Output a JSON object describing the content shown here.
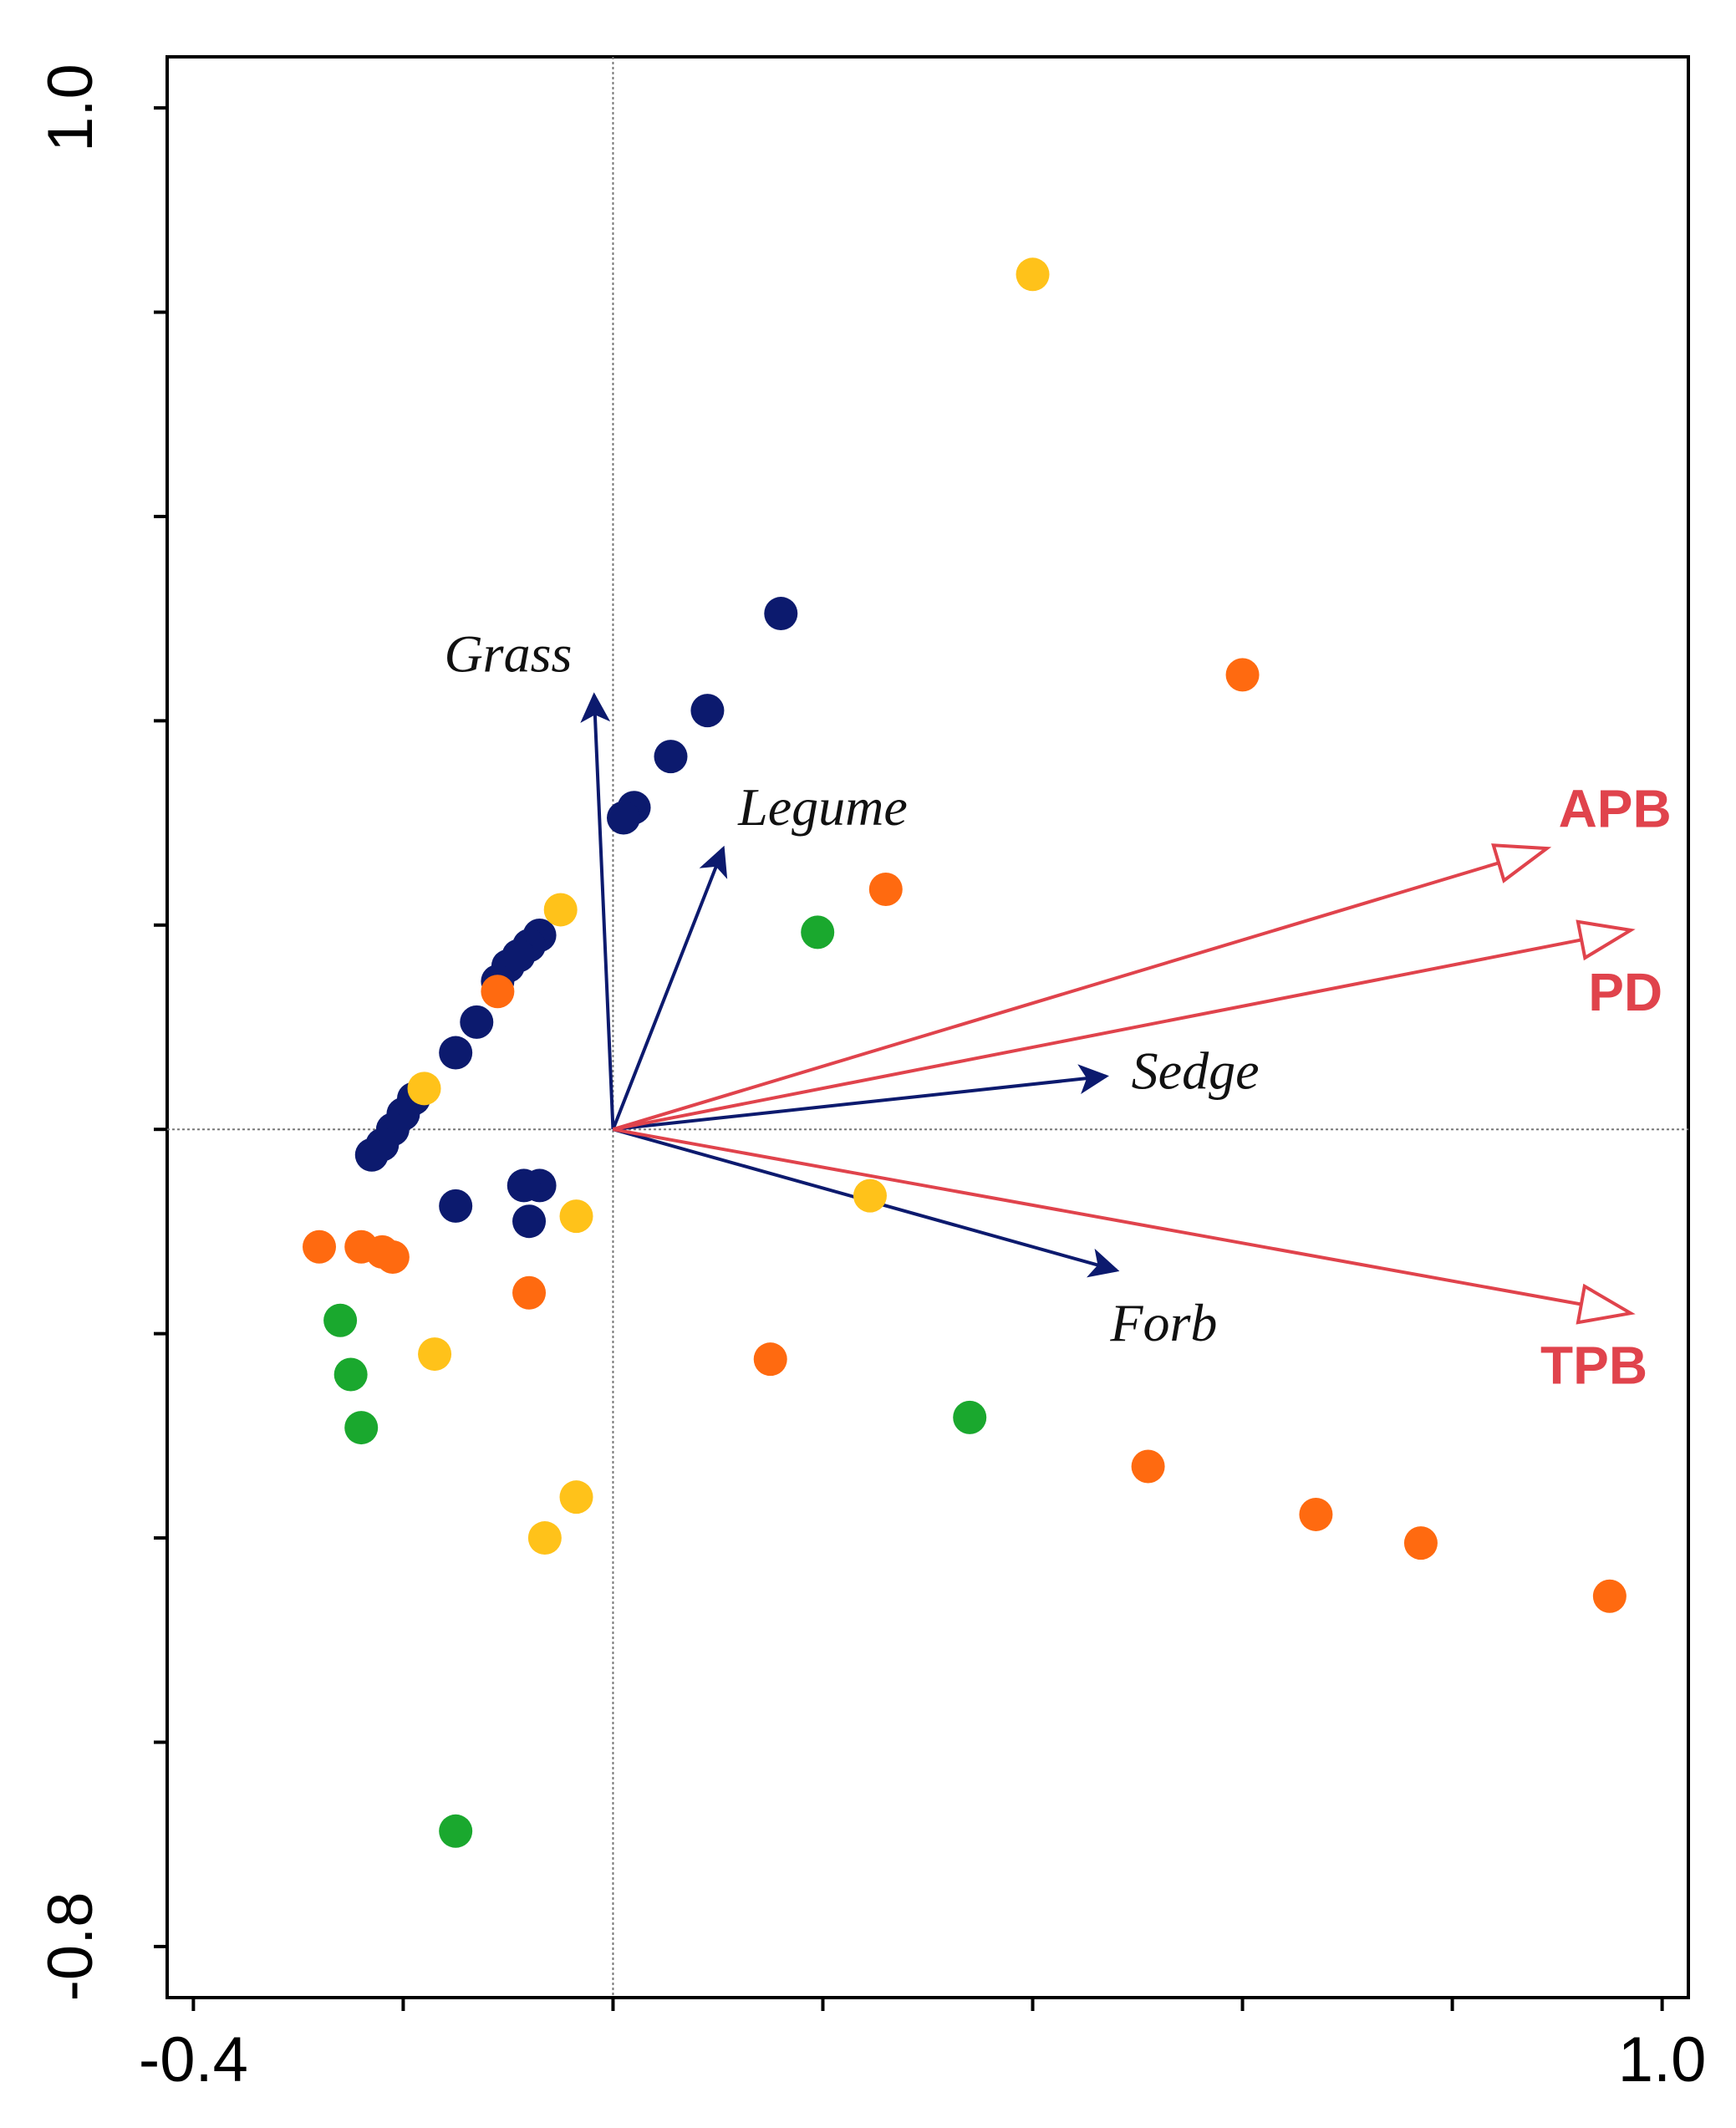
{
  "chart_data": {
    "type": "scatter",
    "subtype": "ordination biplot",
    "title": "",
    "xlabel": "",
    "ylabel": "",
    "xlim": [
      -0.425,
      1.025
    ],
    "ylim": [
      -0.85,
      1.05
    ],
    "x_tick_values": [
      -0.4,
      -0.2,
      0.0,
      0.2,
      0.4,
      0.6,
      0.8,
      1.0
    ],
    "y_tick_values": [
      -0.8,
      -0.6,
      -0.4,
      -0.2,
      0.0,
      0.2,
      0.4,
      0.6,
      0.8,
      1.0
    ],
    "x_tick_labels": [
      {
        "value": -0.4,
        "label": "-0.4"
      },
      {
        "value": 1.0,
        "label": "1.0"
      }
    ],
    "y_tick_labels": [
      {
        "value": 1.0,
        "label": "1.0"
      },
      {
        "value": -0.8,
        "label": "-0.8"
      }
    ],
    "reference_lines": {
      "x": 0,
      "y": 0
    },
    "colors": {
      "navy": "#0c1a6e",
      "orange": "#ff6a10",
      "yellow": "#ffc21a",
      "green": "#1aa82e",
      "env_arrow": "#e0434c",
      "var_arrow": "#0c1a6e"
    },
    "series": [
      {
        "name": "navy",
        "color": "#0c1a6e",
        "points": [
          [
            0.16,
            0.505
          ],
          [
            0.09,
            0.41
          ],
          [
            0.055,
            0.365
          ],
          [
            0.02,
            0.315
          ],
          [
            0.01,
            0.305
          ],
          [
            -0.07,
            0.19
          ],
          [
            -0.08,
            0.18
          ],
          [
            -0.09,
            0.17
          ],
          [
            -0.1,
            0.16
          ],
          [
            -0.11,
            0.145
          ],
          [
            -0.13,
            0.105
          ],
          [
            -0.15,
            0.075
          ],
          [
            -0.19,
            0.03
          ],
          [
            -0.2,
            0.015
          ],
          [
            -0.21,
            0.0
          ],
          [
            -0.22,
            -0.015
          ],
          [
            -0.23,
            -0.025
          ],
          [
            -0.15,
            -0.075
          ],
          [
            -0.07,
            -0.055
          ],
          [
            -0.085,
            -0.055
          ],
          [
            -0.08,
            -0.09
          ]
        ]
      },
      {
        "name": "orange",
        "color": "#ff6a10",
        "points": [
          [
            0.6,
            0.445
          ],
          [
            0.26,
            0.235
          ],
          [
            -0.11,
            0.135
          ],
          [
            -0.28,
            -0.115
          ],
          [
            -0.24,
            -0.115
          ],
          [
            -0.22,
            -0.12
          ],
          [
            -0.21,
            -0.125
          ],
          [
            -0.08,
            -0.16
          ],
          [
            0.15,
            -0.225
          ],
          [
            0.51,
            -0.33
          ],
          [
            0.67,
            -0.377
          ],
          [
            0.77,
            -0.405
          ],
          [
            0.95,
            -0.457
          ]
        ]
      },
      {
        "name": "yellow",
        "color": "#ffc21a",
        "points": [
          [
            0.4,
            0.837
          ],
          [
            -0.05,
            0.215
          ],
          [
            -0.18,
            0.04
          ],
          [
            0.245,
            -0.065
          ],
          [
            -0.035,
            -0.085
          ],
          [
            -0.17,
            -0.22
          ],
          [
            -0.035,
            -0.36
          ],
          [
            -0.065,
            -0.4
          ]
        ]
      },
      {
        "name": "green",
        "color": "#1aa82e",
        "points": [
          [
            0.195,
            0.193
          ],
          [
            -0.26,
            -0.187
          ],
          [
            -0.25,
            -0.24
          ],
          [
            -0.24,
            -0.292
          ],
          [
            0.34,
            -0.282
          ],
          [
            -0.15,
            -0.687
          ]
        ]
      }
    ],
    "arrows": [
      {
        "label": "Grass",
        "kind": "species",
        "x": -0.018,
        "y": 0.425,
        "label_x": -0.1,
        "label_y": 0.46
      },
      {
        "label": "Legume",
        "kind": "species",
        "x": 0.105,
        "y": 0.275,
        "label_x": 0.2,
        "label_y": 0.31
      },
      {
        "label": "Sedge",
        "kind": "species",
        "x": 0.47,
        "y": 0.052,
        "label_x": 0.555,
        "label_y": 0.052
      },
      {
        "label": "Forb",
        "kind": "species",
        "x": 0.48,
        "y": -0.138,
        "label_x": 0.525,
        "label_y": -0.195
      },
      {
        "label": "APB",
        "kind": "environment",
        "x": 0.89,
        "y": 0.275,
        "label_x": 0.955,
        "label_y": 0.31
      },
      {
        "label": "PD",
        "kind": "environment",
        "x": 0.97,
        "y": 0.195,
        "label_x": 0.965,
        "label_y": 0.13
      },
      {
        "label": "TPB",
        "kind": "environment",
        "x": 0.97,
        "y": -0.18,
        "label_x": 0.935,
        "label_y": -0.235
      }
    ]
  }
}
